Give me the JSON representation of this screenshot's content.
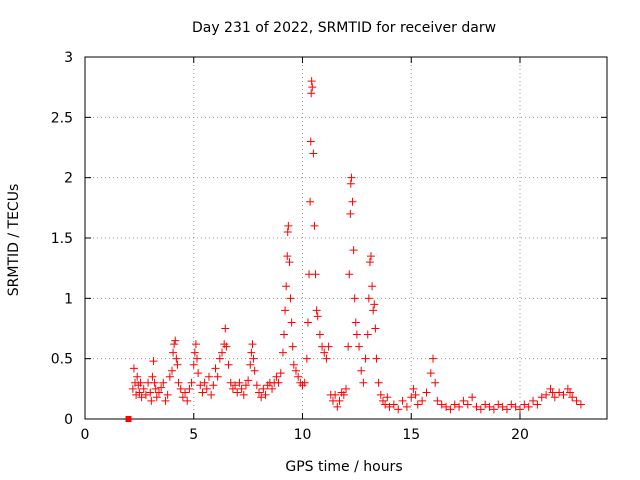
{
  "chart_data": {
    "type": "scatter",
    "title": "Day 231 of 2022, SRMTID for receiver darw",
    "xlabel": "GPS time / hours",
    "ylabel": "SRMTID / TECUs",
    "xlim": [
      0,
      24
    ],
    "ylim": [
      0,
      3
    ],
    "xticks": [
      0,
      5,
      10,
      15,
      20
    ],
    "xtick_labels": [
      "0",
      "5",
      "10",
      "15",
      "20"
    ],
    "yticks": [
      0,
      0.5,
      1,
      1.5,
      2,
      2.5,
      3
    ],
    "ytick_labels": [
      "0",
      "0.5",
      "1",
      "1.5",
      "2",
      "2.5",
      "3"
    ],
    "grid": true,
    "marker": "+",
    "color": "#ff0000",
    "series": [
      {
        "name": "SRMTID",
        "points": [
          [
            2.2,
            0.25
          ],
          [
            2.25,
            0.42
          ],
          [
            2.3,
            0.3
          ],
          [
            2.35,
            0.2
          ],
          [
            2.4,
            0.35
          ],
          [
            2.45,
            0.28
          ],
          [
            2.5,
            0.22
          ],
          [
            2.55,
            0.3
          ],
          [
            2.6,
            0.18
          ],
          [
            2.7,
            0.25
          ],
          [
            2.8,
            0.2
          ],
          [
            2.9,
            0.3
          ],
          [
            3.0,
            0.22
          ],
          [
            3.05,
            0.15
          ],
          [
            3.1,
            0.35
          ],
          [
            3.15,
            0.48
          ],
          [
            3.2,
            0.3
          ],
          [
            3.25,
            0.25
          ],
          [
            3.3,
            0.18
          ],
          [
            3.4,
            0.22
          ],
          [
            3.5,
            0.26
          ],
          [
            3.6,
            0.3
          ],
          [
            3.7,
            0.15
          ],
          [
            3.8,
            0.2
          ],
          [
            3.9,
            0.35
          ],
          [
            4.0,
            0.4
          ],
          [
            4.05,
            0.55
          ],
          [
            4.1,
            0.62
          ],
          [
            4.15,
            0.65
          ],
          [
            4.2,
            0.5
          ],
          [
            4.25,
            0.45
          ],
          [
            4.3,
            0.3
          ],
          [
            4.4,
            0.25
          ],
          [
            4.5,
            0.18
          ],
          [
            4.6,
            0.22
          ],
          [
            4.7,
            0.15
          ],
          [
            4.8,
            0.25
          ],
          [
            4.9,
            0.3
          ],
          [
            5.0,
            0.45
          ],
          [
            5.05,
            0.55
          ],
          [
            5.1,
            0.62
          ],
          [
            5.15,
            0.5
          ],
          [
            5.2,
            0.38
          ],
          [
            5.3,
            0.28
          ],
          [
            5.4,
            0.22
          ],
          [
            5.5,
            0.3
          ],
          [
            5.6,
            0.25
          ],
          [
            5.7,
            0.35
          ],
          [
            5.8,
            0.2
          ],
          [
            5.9,
            0.28
          ],
          [
            6.0,
            0.42
          ],
          [
            6.1,
            0.35
          ],
          [
            6.2,
            0.5
          ],
          [
            6.3,
            0.55
          ],
          [
            6.4,
            0.62
          ],
          [
            6.45,
            0.75
          ],
          [
            6.5,
            0.6
          ],
          [
            6.6,
            0.45
          ],
          [
            6.7,
            0.3
          ],
          [
            6.8,
            0.25
          ],
          [
            6.9,
            0.28
          ],
          [
            7.0,
            0.22
          ],
          [
            7.1,
            0.3
          ],
          [
            7.2,
            0.25
          ],
          [
            7.3,
            0.2
          ],
          [
            7.4,
            0.28
          ],
          [
            7.5,
            0.32
          ],
          [
            7.6,
            0.45
          ],
          [
            7.65,
            0.55
          ],
          [
            7.7,
            0.62
          ],
          [
            7.75,
            0.5
          ],
          [
            7.8,
            0.4
          ],
          [
            7.9,
            0.28
          ],
          [
            8.0,
            0.22
          ],
          [
            8.1,
            0.18
          ],
          [
            8.2,
            0.25
          ],
          [
            8.3,
            0.2
          ],
          [
            8.4,
            0.28
          ],
          [
            8.5,
            0.3
          ],
          [
            8.6,
            0.25
          ],
          [
            8.7,
            0.3
          ],
          [
            8.8,
            0.35
          ],
          [
            8.9,
            0.3
          ],
          [
            9.0,
            0.38
          ],
          [
            9.1,
            0.55
          ],
          [
            9.15,
            0.7
          ],
          [
            9.2,
            0.9
          ],
          [
            9.25,
            1.1
          ],
          [
            9.3,
            1.35
          ],
          [
            9.32,
            1.55
          ],
          [
            9.35,
            1.6
          ],
          [
            9.4,
            1.3
          ],
          [
            9.45,
            1.0
          ],
          [
            9.5,
            0.8
          ],
          [
            9.55,
            0.6
          ],
          [
            9.6,
            0.45
          ],
          [
            9.7,
            0.4
          ],
          [
            9.8,
            0.35
          ],
          [
            9.9,
            0.3
          ],
          [
            10.0,
            0.28
          ],
          [
            10.1,
            0.3
          ],
          [
            10.2,
            0.5
          ],
          [
            10.25,
            0.8
          ],
          [
            10.3,
            1.2
          ],
          [
            10.35,
            1.8
          ],
          [
            10.38,
            2.3
          ],
          [
            10.4,
            2.7
          ],
          [
            10.42,
            2.8
          ],
          [
            10.45,
            2.75
          ],
          [
            10.5,
            2.2
          ],
          [
            10.55,
            1.6
          ],
          [
            10.6,
            1.2
          ],
          [
            10.65,
            0.9
          ],
          [
            10.7,
            0.85
          ],
          [
            10.8,
            0.7
          ],
          [
            10.9,
            0.6
          ],
          [
            11.0,
            0.55
          ],
          [
            11.1,
            0.5
          ],
          [
            11.2,
            0.6
          ],
          [
            11.3,
            0.2
          ],
          [
            11.4,
            0.15
          ],
          [
            11.5,
            0.2
          ],
          [
            11.6,
            0.1
          ],
          [
            11.7,
            0.15
          ],
          [
            11.8,
            0.22
          ],
          [
            11.9,
            0.2
          ],
          [
            12.0,
            0.25
          ],
          [
            12.1,
            0.6
          ],
          [
            12.15,
            1.2
          ],
          [
            12.2,
            1.7
          ],
          [
            12.22,
            1.95
          ],
          [
            12.25,
            2.0
          ],
          [
            12.3,
            1.8
          ],
          [
            12.35,
            1.4
          ],
          [
            12.4,
            1.0
          ],
          [
            12.45,
            0.8
          ],
          [
            12.5,
            0.7
          ],
          [
            12.6,
            0.6
          ],
          [
            12.7,
            0.4
          ],
          [
            12.8,
            0.3
          ],
          [
            12.9,
            0.5
          ],
          [
            13.0,
            0.7
          ],
          [
            13.05,
            1.0
          ],
          [
            13.1,
            1.3
          ],
          [
            13.15,
            1.35
          ],
          [
            13.2,
            1.1
          ],
          [
            13.25,
            0.9
          ],
          [
            13.3,
            0.95
          ],
          [
            13.35,
            0.75
          ],
          [
            13.4,
            0.5
          ],
          [
            13.5,
            0.3
          ],
          [
            13.6,
            0.2
          ],
          [
            13.7,
            0.15
          ],
          [
            13.8,
            0.12
          ],
          [
            13.9,
            0.18
          ],
          [
            14.0,
            0.1
          ],
          [
            14.2,
            0.12
          ],
          [
            14.4,
            0.08
          ],
          [
            14.6,
            0.15
          ],
          [
            14.8,
            0.1
          ],
          [
            15.0,
            0.18
          ],
          [
            15.1,
            0.25
          ],
          [
            15.2,
            0.2
          ],
          [
            15.3,
            0.12
          ],
          [
            15.5,
            0.15
          ],
          [
            15.7,
            0.22
          ],
          [
            15.9,
            0.38
          ],
          [
            16.0,
            0.5
          ],
          [
            16.1,
            0.3
          ],
          [
            16.2,
            0.15
          ],
          [
            16.4,
            0.12
          ],
          [
            16.6,
            0.1
          ],
          [
            16.8,
            0.08
          ],
          [
            17.0,
            0.12
          ],
          [
            17.2,
            0.1
          ],
          [
            17.4,
            0.15
          ],
          [
            17.6,
            0.12
          ],
          [
            17.8,
            0.18
          ],
          [
            18.0,
            0.1
          ],
          [
            18.2,
            0.08
          ],
          [
            18.4,
            0.12
          ],
          [
            18.6,
            0.1
          ],
          [
            18.8,
            0.08
          ],
          [
            19.0,
            0.12
          ],
          [
            19.2,
            0.1
          ],
          [
            19.4,
            0.08
          ],
          [
            19.6,
            0.12
          ],
          [
            19.8,
            0.1
          ],
          [
            20.0,
            0.08
          ],
          [
            20.2,
            0.12
          ],
          [
            20.4,
            0.1
          ],
          [
            20.6,
            0.15
          ],
          [
            20.8,
            0.12
          ],
          [
            21.0,
            0.18
          ],
          [
            21.2,
            0.2
          ],
          [
            21.4,
            0.25
          ],
          [
            21.5,
            0.22
          ],
          [
            21.6,
            0.18
          ],
          [
            21.8,
            0.22
          ],
          [
            22.0,
            0.2
          ],
          [
            22.2,
            0.25
          ],
          [
            22.3,
            0.22
          ],
          [
            22.4,
            0.18
          ],
          [
            22.6,
            0.15
          ],
          [
            22.8,
            0.12
          ]
        ]
      }
    ],
    "extra_point": [
      2.0,
      0.0
    ]
  }
}
